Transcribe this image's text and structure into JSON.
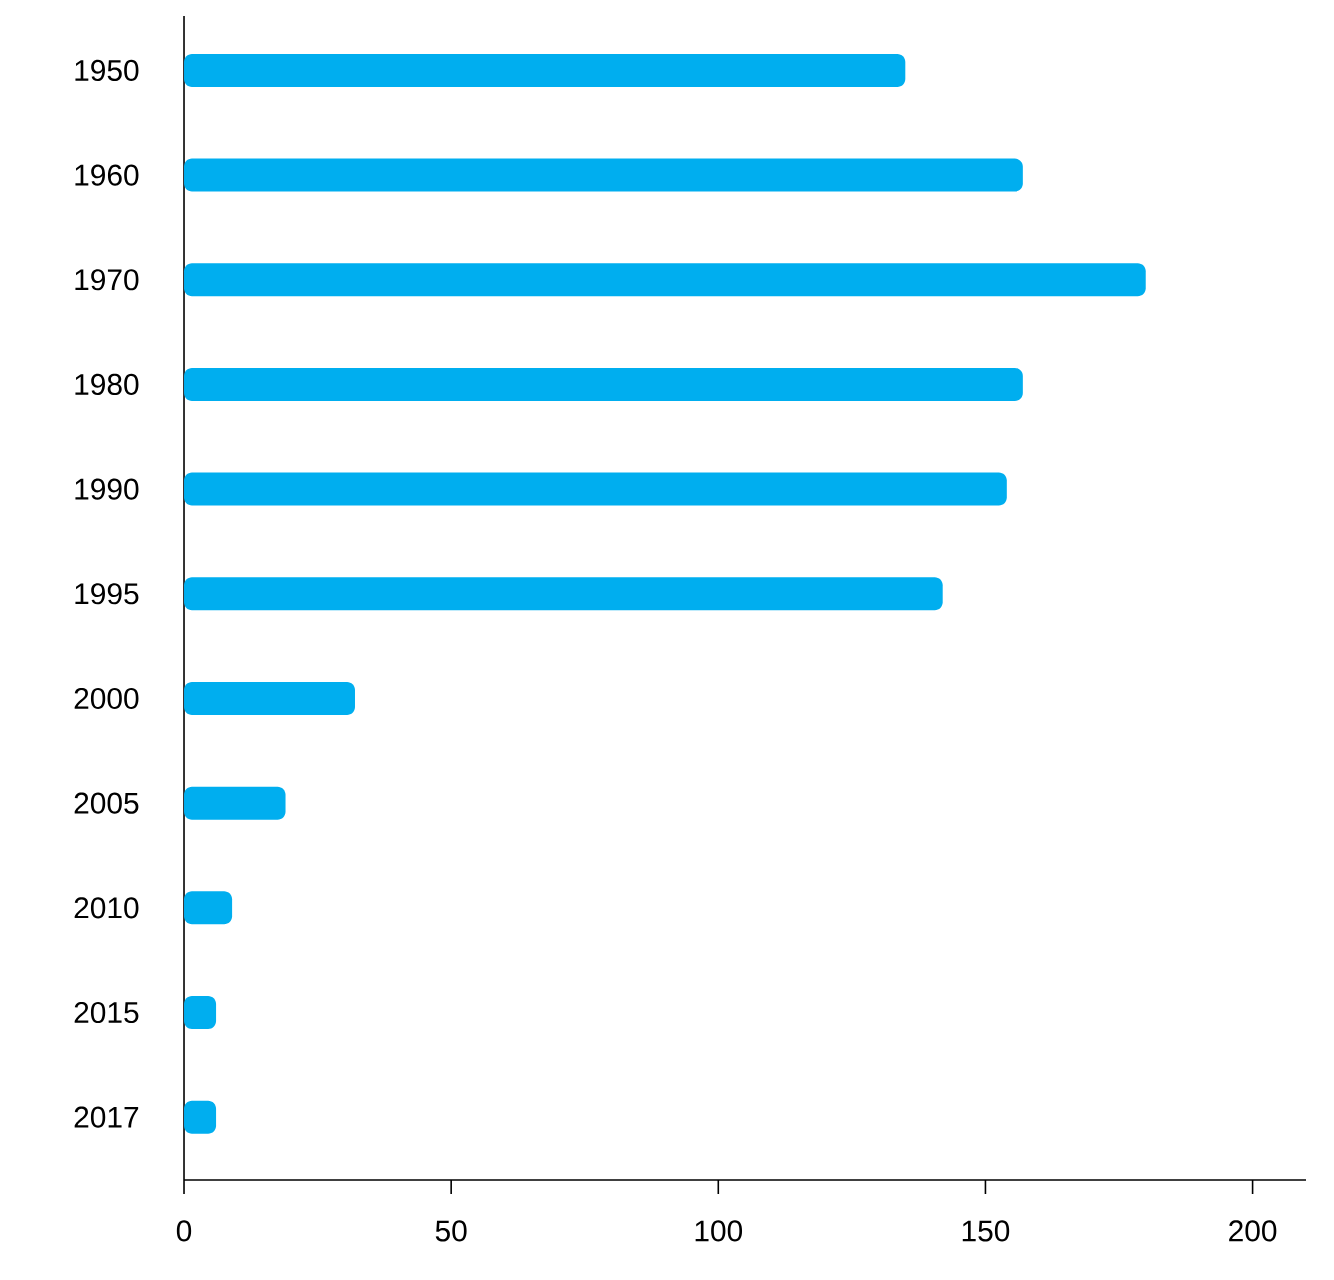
{
  "chart_data": {
    "type": "bar",
    "orientation": "horizontal",
    "categories": [
      "1950",
      "1960",
      "1970",
      "1980",
      "1990",
      "1995",
      "2000",
      "2005",
      "2010",
      "2015",
      "2017"
    ],
    "values": [
      135,
      157,
      180,
      157,
      154,
      142,
      32,
      19,
      9,
      6,
      6
    ],
    "color": "#00aeef",
    "xlim": [
      0,
      210
    ],
    "xticks": [
      0,
      50,
      100,
      150,
      200
    ],
    "grid": false
  }
}
